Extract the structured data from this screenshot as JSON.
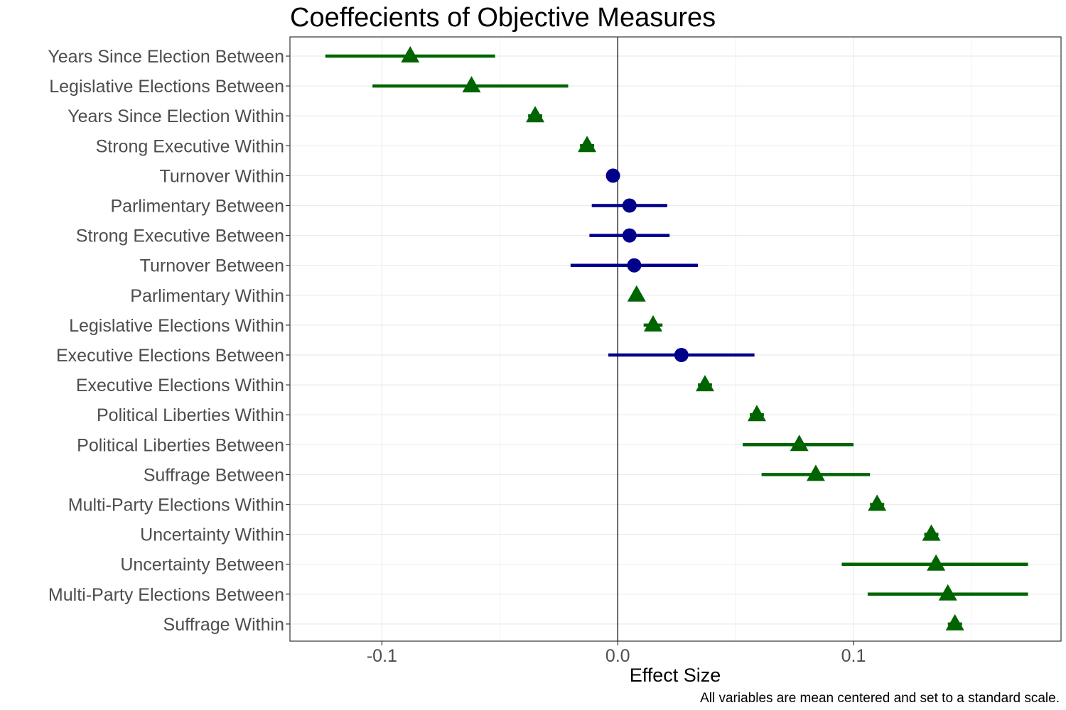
{
  "chart_data": {
    "type": "scatter",
    "title": "Coeffecients of Objective Measures",
    "xlabel": "Effect Size",
    "ylabel": "",
    "caption": "All variables are mean centered and set to a standard scale.",
    "xlim": [
      -0.139,
      0.188
    ],
    "x_ticks": [
      -0.1,
      0.0,
      0.1
    ],
    "x_tick_labels": [
      "-0.1",
      "0.0",
      "0.1"
    ],
    "zero_line": 0,
    "grid": true,
    "legend": "none",
    "colors": {
      "triangle": "#006400",
      "circle": "#00008B"
    },
    "categories": [
      "Years Since Election Between",
      "Legislative Elections Between",
      "Years Since Election Within",
      "Strong Executive Within",
      "Turnover Within",
      "Parlimentary Between",
      "Strong Executive Between",
      "Turnover Between",
      "Parlimentary Within",
      "Legislative Elections Within",
      "Executive Elections Between",
      "Executive Elections Within",
      "Political Liberties Within",
      "Political Liberties Between",
      "Suffrage Between",
      "Multi-Party Elections Within",
      "Uncertainty Within",
      "Uncertainty Between",
      "Multi-Party Elections Between",
      "Suffrage Within"
    ],
    "points": [
      {
        "label": "Years Since Election Between",
        "estimate": -0.088,
        "lower": -0.124,
        "upper": -0.052,
        "shape": "triangle"
      },
      {
        "label": "Legislative Elections Between",
        "estimate": -0.062,
        "lower": -0.104,
        "upper": -0.021,
        "shape": "triangle"
      },
      {
        "label": "Years Since Election Within",
        "estimate": -0.035,
        "lower": -0.038,
        "upper": -0.032,
        "shape": "triangle"
      },
      {
        "label": "Strong Executive Within",
        "estimate": -0.013,
        "lower": -0.016,
        "upper": -0.01,
        "shape": "triangle"
      },
      {
        "label": "Turnover Within",
        "estimate": -0.002,
        "lower": -0.004,
        "upper": 0.0,
        "shape": "circle"
      },
      {
        "label": "Parlimentary Between",
        "estimate": 0.005,
        "lower": -0.011,
        "upper": 0.021,
        "shape": "circle"
      },
      {
        "label": "Strong Executive Between",
        "estimate": 0.005,
        "lower": -0.012,
        "upper": 0.022,
        "shape": "circle"
      },
      {
        "label": "Turnover Between",
        "estimate": 0.007,
        "lower": -0.02,
        "upper": 0.034,
        "shape": "circle"
      },
      {
        "label": "Parlimentary Within",
        "estimate": 0.008,
        "lower": 0.006,
        "upper": 0.01,
        "shape": "triangle"
      },
      {
        "label": "Legislative Elections Within",
        "estimate": 0.015,
        "lower": 0.011,
        "upper": 0.019,
        "shape": "triangle"
      },
      {
        "label": "Executive Elections Between",
        "estimate": 0.027,
        "lower": -0.004,
        "upper": 0.058,
        "shape": "circle"
      },
      {
        "label": "Executive Elections Within",
        "estimate": 0.037,
        "lower": 0.034,
        "upper": 0.04,
        "shape": "triangle"
      },
      {
        "label": "Political Liberties Within",
        "estimate": 0.059,
        "lower": 0.056,
        "upper": 0.062,
        "shape": "triangle"
      },
      {
        "label": "Political Liberties Between",
        "estimate": 0.077,
        "lower": 0.053,
        "upper": 0.1,
        "shape": "triangle"
      },
      {
        "label": "Suffrage Between",
        "estimate": 0.084,
        "lower": 0.061,
        "upper": 0.107,
        "shape": "triangle"
      },
      {
        "label": "Multi-Party Elections Within",
        "estimate": 0.11,
        "lower": 0.107,
        "upper": 0.113,
        "shape": "triangle"
      },
      {
        "label": "Uncertainty Within",
        "estimate": 0.133,
        "lower": 0.13,
        "upper": 0.136,
        "shape": "triangle"
      },
      {
        "label": "Uncertainty Between",
        "estimate": 0.135,
        "lower": 0.095,
        "upper": 0.174,
        "shape": "triangle"
      },
      {
        "label": "Multi-Party Elections Between",
        "estimate": 0.14,
        "lower": 0.106,
        "upper": 0.174,
        "shape": "triangle"
      },
      {
        "label": "Suffrage Within",
        "estimate": 0.143,
        "lower": 0.14,
        "upper": 0.146,
        "shape": "triangle"
      }
    ]
  }
}
